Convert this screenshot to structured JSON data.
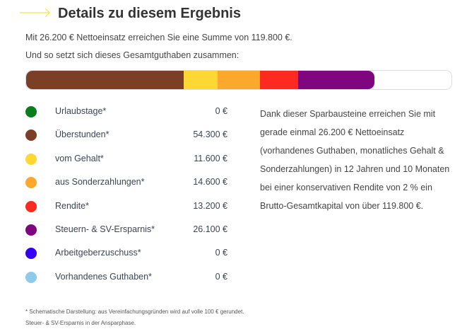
{
  "header": {
    "title": "Details zu diesem Ergebnis",
    "accent": "#f5e63c"
  },
  "intro": {
    "line1": "Mit 26.200 € Nettoeinsatz erreichen Sie eine Summe von 119.800 €.",
    "line2": "Und so setzt sich dieses Gesamtguthaben zusammen:"
  },
  "bar": {
    "scale_max": 146400
  },
  "legend": [
    {
      "label": "Urlaubstage*",
      "value": "0 €",
      "amount": 0,
      "color": "#0a7d1e"
    },
    {
      "label": "Überstunden*",
      "value": "54.300 €",
      "amount": 54300,
      "color": "#7a3f25"
    },
    {
      "label": "vom Gehalt*",
      "value": "11.600 €",
      "amount": 11600,
      "color": "#fdd835"
    },
    {
      "label": "aus Sonderzahlungen*",
      "value": "14.600 €",
      "amount": 14600,
      "color": "#fba82c"
    },
    {
      "label": "Rendite*",
      "value": "13.200 €",
      "amount": 13200,
      "color": "#fe2a1f"
    },
    {
      "label": "Steuern- & SV-Ersparnis*",
      "value": "26.100 €",
      "amount": 26100,
      "color": "#7f067f"
    },
    {
      "label": "Arbeitgeberzuschuss*",
      "value": "0 €",
      "amount": 0,
      "color": "#3300f5"
    },
    {
      "label": "Vorhandenes Guthaben*",
      "value": "0 €",
      "amount": 0,
      "color": "#8ecbea"
    }
  ],
  "description": "Dank dieser Sparbausteine erreichen Sie mit gerade einmal 26.200 € Nettoeinsatz (vorhandenes Guthaben, monatliches Gehalt & Sonderzahlungen) in 12 Jahren und 10 Monaten bei einer konservativen Rendite von 2 % ein Brutto-Gesamtkapital von über 119.800 €.",
  "footnote": "* Schematische Darstellung: aus Vereinfachungsgründen wird auf volle 100 € gerundet. Steuer- & SV-Ersparnis in der Ansparphase."
}
